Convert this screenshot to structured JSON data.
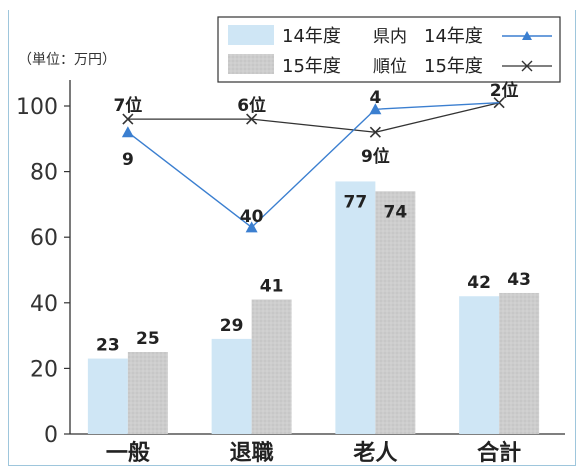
{
  "chart_data": {
    "type": "bar",
    "categories": [
      "一般",
      "退職",
      "老人",
      "合計"
    ],
    "unit_label": "（単位：万円）",
    "ylim": [
      0,
      105
    ],
    "yticks": [
      0,
      20,
      40,
      60,
      80,
      100
    ],
    "series": [
      {
        "name": "14年度",
        "values": [
          23,
          29,
          77,
          42
        ],
        "color": "#cfe6f5"
      },
      {
        "name": "15年度",
        "values": [
          25,
          41,
          74,
          43
        ],
        "color": "#cdcdcd"
      }
    ],
    "secondary_series_group": "県内順位",
    "rank_series": [
      {
        "name": "14年度",
        "ranks": [
          "9",
          "40",
          "4",
          ""
        ],
        "rank_value": [
          92,
          63,
          99,
          101
        ],
        "color": "#3b7fd0",
        "marker": "triangle"
      },
      {
        "name": "15年度",
        "ranks": [
          "7位",
          "6位",
          "9位",
          "2位"
        ],
        "rank_value": [
          96,
          96,
          92,
          101
        ],
        "color": "#333333",
        "marker": "x"
      }
    ],
    "grid": false,
    "legend_position": "top-right"
  }
}
